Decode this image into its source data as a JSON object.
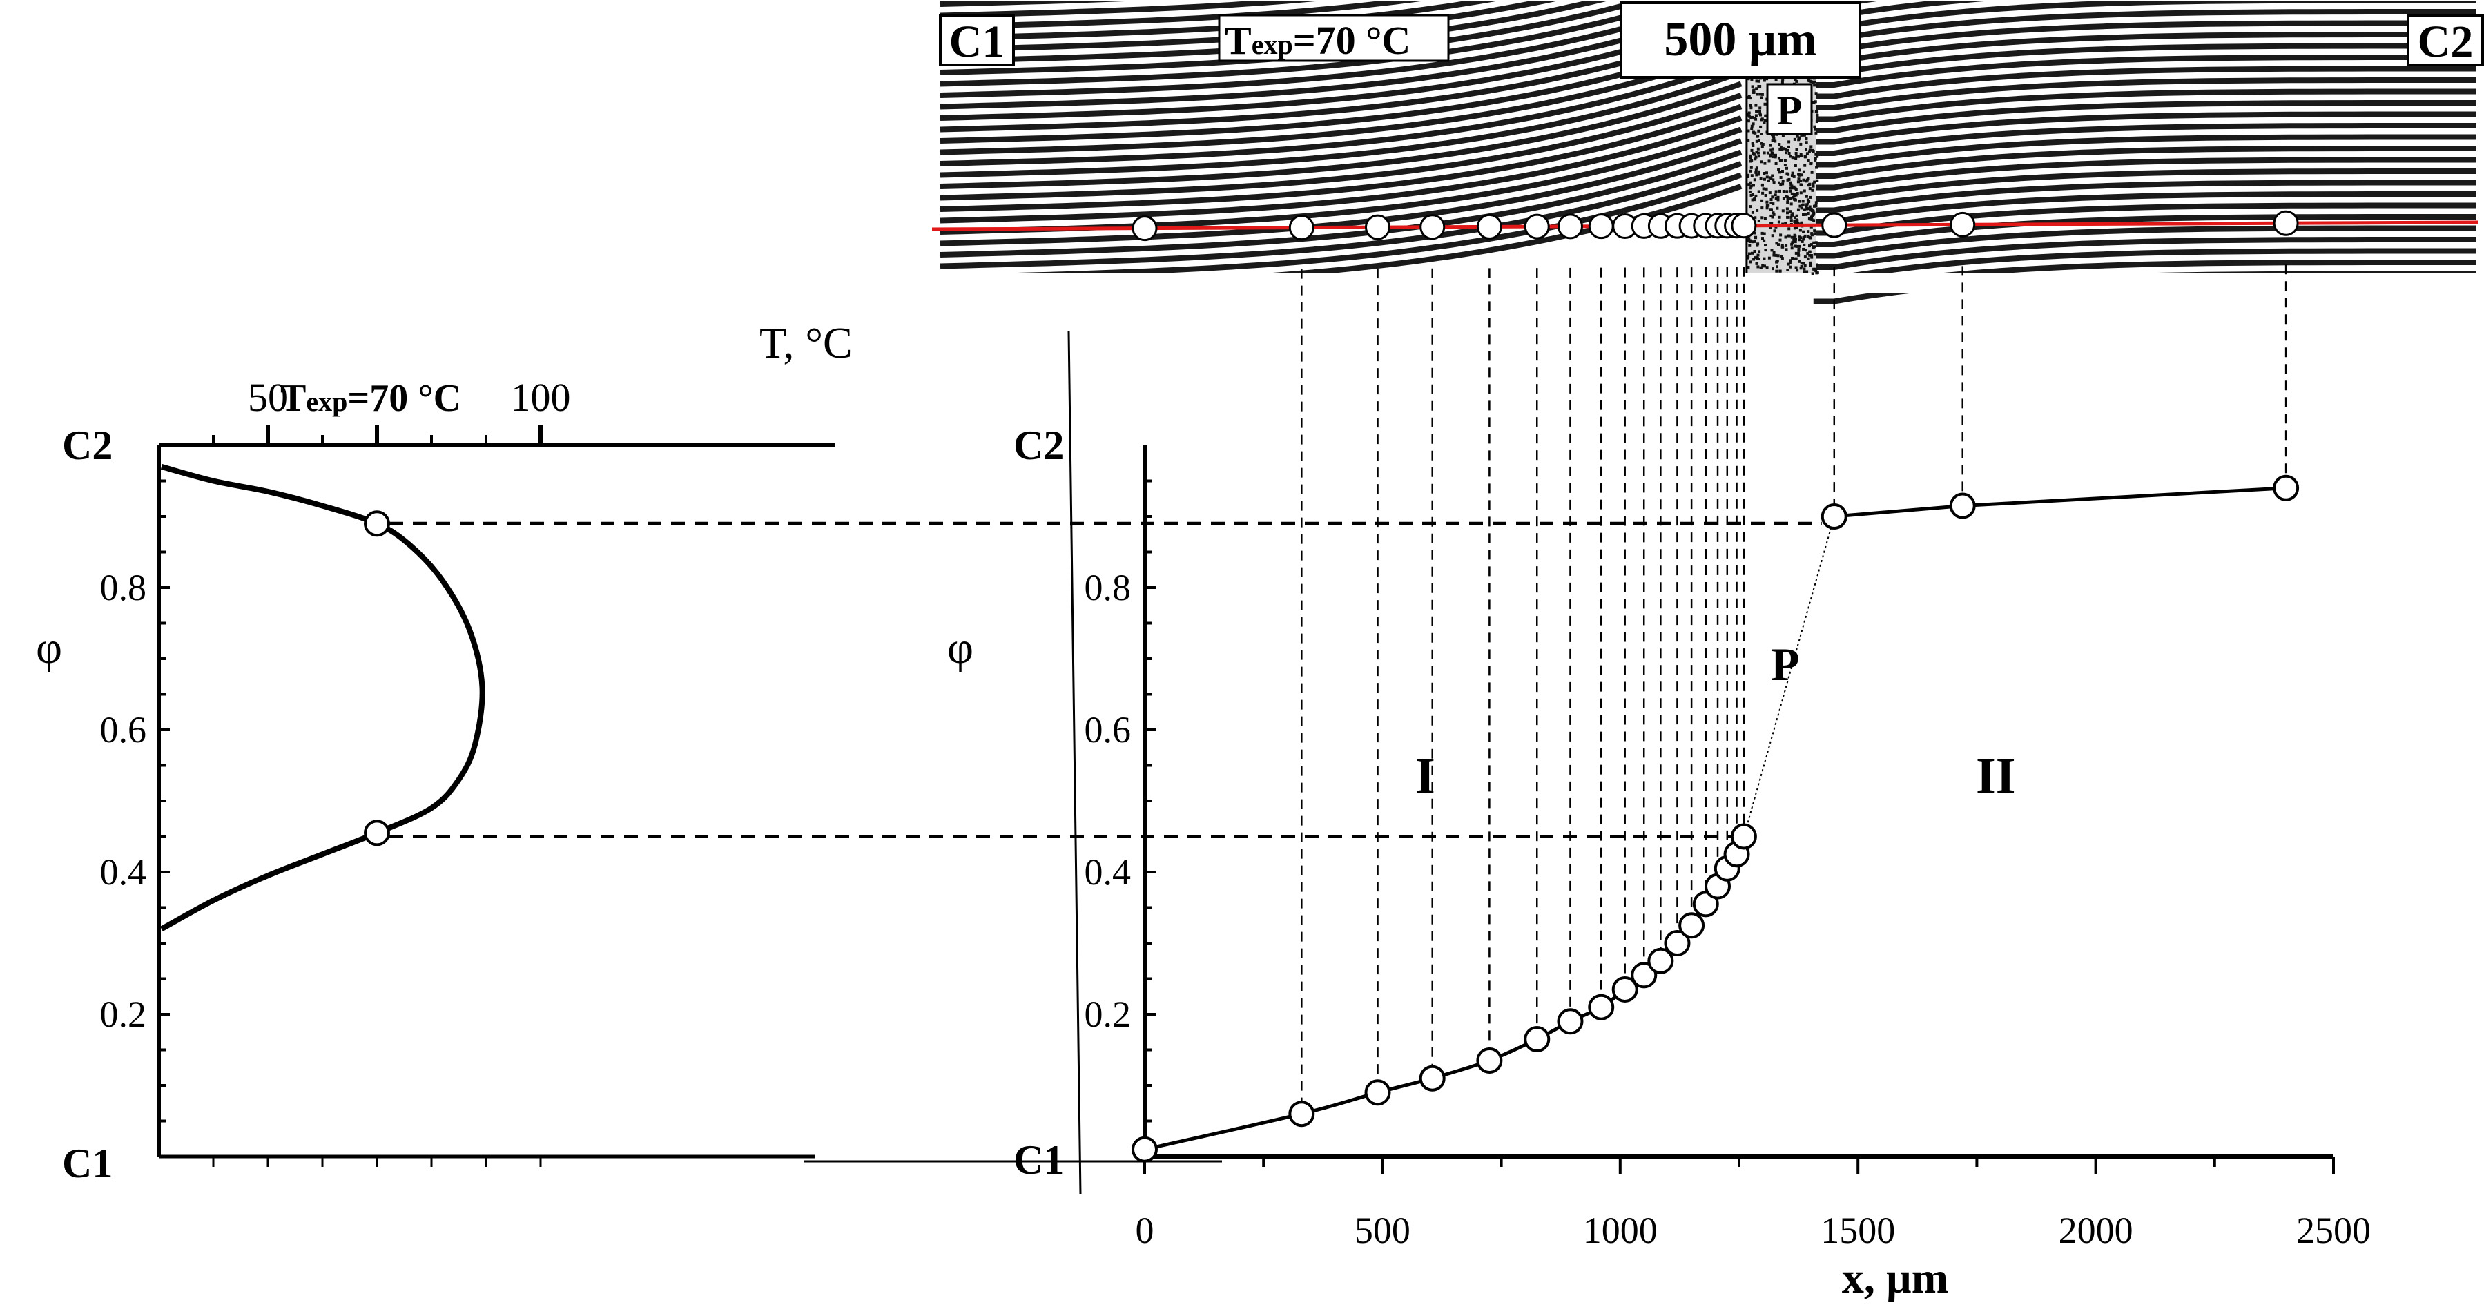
{
  "chart_data": [
    {
      "type": "line",
      "name": "phase-diagram",
      "orientation": "temperature on x (top axis), phi on y",
      "xlabel": "T, °C",
      "ylabel": "φ",
      "x_ticks": [
        50,
        100
      ],
      "xlim": [
        30,
        100
      ],
      "ylim": [
        0,
        1
      ],
      "y_ticks": [
        "0.2",
        "0.4",
        "0.6",
        "0.8"
      ],
      "y_end_labels": {
        "bottom": "C1",
        "top": "C2"
      },
      "marker_label_pre": "T",
      "marker_label_sub": "exp",
      "marker_label_post": "=70 °C",
      "marker_T": 70,
      "curve": [
        {
          "T": 30.5,
          "phi": 0.32
        },
        {
          "T": 40,
          "phi": 0.36
        },
        {
          "T": 50,
          "phi": 0.395
        },
        {
          "T": 60,
          "phi": 0.425
        },
        {
          "T": 70,
          "phi": 0.455
        },
        {
          "T": 80,
          "phi": 0.49
        },
        {
          "T": 85,
          "phi": 0.53
        },
        {
          "T": 88,
          "phi": 0.58
        },
        {
          "T": 89.3,
          "phi": 0.66
        },
        {
          "T": 87,
          "phi": 0.74
        },
        {
          "T": 82,
          "phi": 0.81
        },
        {
          "T": 76,
          "phi": 0.86
        },
        {
          "T": 70,
          "phi": 0.89
        },
        {
          "T": 60,
          "phi": 0.915
        },
        {
          "T": 50,
          "phi": 0.935
        },
        {
          "T": 40,
          "phi": 0.95
        },
        {
          "T": 30.5,
          "phi": 0.97
        }
      ],
      "markers": [
        {
          "T": 70,
          "phi": 0.89
        },
        {
          "T": 70,
          "phi": 0.455
        }
      ]
    },
    {
      "type": "line",
      "name": "concentration-profile",
      "xlabel": "x, µm",
      "ylabel": "φ",
      "xlim": [
        0,
        2500
      ],
      "x_ticks": [
        0,
        500,
        1000,
        1500,
        2000,
        2500
      ],
      "ylim": [
        0,
        1
      ],
      "y_ticks": [
        "0.2",
        "0.4",
        "0.6",
        "0.8"
      ],
      "y_end_labels": {
        "bottom": "C1",
        "top": "C2"
      },
      "regions": [
        "I",
        "II"
      ],
      "transition_label": "P",
      "tie_line_phi": [
        0.89,
        0.45
      ],
      "series": [
        {
          "x": [
            0,
            330,
            490,
            605,
            725,
            825,
            895,
            960,
            1010,
            1050,
            1085,
            1120,
            1150,
            1180,
            1205,
            1225,
            1245,
            1260
          ],
          "y": [
            0.01,
            0.06,
            0.09,
            0.11,
            0.135,
            0.165,
            0.19,
            0.21,
            0.235,
            0.255,
            0.275,
            0.3,
            0.325,
            0.355,
            0.38,
            0.405,
            0.425,
            0.45
          ]
        },
        {
          "x": [
            1450,
            1720,
            2400
          ],
          "y": [
            0.9,
            0.915,
            0.94
          ]
        }
      ]
    }
  ],
  "micrograph": {
    "left_label": "C1",
    "right_label": "C2",
    "temp_pre": "T",
    "temp_sub": "exp",
    "temp_post": "=70 °C",
    "scale_bar": "500 µm",
    "boundary_label": "P"
  }
}
